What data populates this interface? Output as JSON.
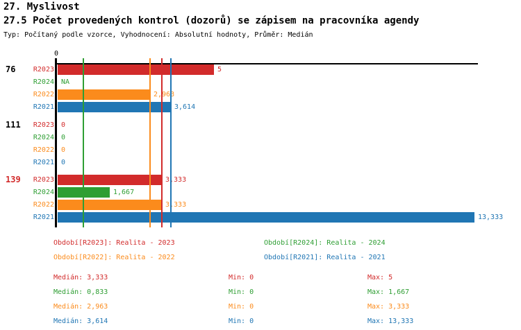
{
  "header": {
    "title": "27. Myslivost",
    "subtitle": "27.5 Počet provedených kontrol (dozorů) se zápisem na pracovníka agendy",
    "meta": "Typ: Počítaný podle vzorce, Vyhodnocení: Absolutní hodnoty, Průměr: Medián"
  },
  "colors": {
    "series": {
      "R2023": "#d22b2b",
      "R2024": "#2e9e33",
      "R2022": "#fb8b1c",
      "R2021": "#2076b4"
    },
    "group_default": "#000000",
    "group_highlight": "#d22b2b",
    "axis": "#000000"
  },
  "chart_data": {
    "type": "bar",
    "orientation": "horizontal",
    "title": "27.5 Počet provedených kontrol (dozorů) se zápisem na pracovníka agendy",
    "x_axis": {
      "origin_label": "0",
      "min": 0,
      "max": 13.45,
      "gridlines": false
    },
    "series_order": [
      "R2023",
      "R2024",
      "R2022",
      "R2021"
    ],
    "groups": [
      {
        "label": "76",
        "highlighted": false,
        "rows": [
          {
            "series": "R2023",
            "value": 5,
            "value_label": "5"
          },
          {
            "series": "R2024",
            "value": null,
            "value_label": "NA"
          },
          {
            "series": "R2022",
            "value": 2.963,
            "value_label": "2,963"
          },
          {
            "series": "R2021",
            "value": 3.614,
            "value_label": "3,614"
          }
        ]
      },
      {
        "label": "111",
        "highlighted": false,
        "rows": [
          {
            "series": "R2023",
            "value": 0,
            "value_label": "0"
          },
          {
            "series": "R2024",
            "value": 0,
            "value_label": "0"
          },
          {
            "series": "R2022",
            "value": 0,
            "value_label": "0"
          },
          {
            "series": "R2021",
            "value": 0,
            "value_label": "0"
          }
        ]
      },
      {
        "label": "139",
        "highlighted": true,
        "rows": [
          {
            "series": "R2023",
            "value": 3.333,
            "value_label": "3,333"
          },
          {
            "series": "R2024",
            "value": 1.667,
            "value_label": "1,667"
          },
          {
            "series": "R2022",
            "value": 3.333,
            "value_label": "3,333"
          },
          {
            "series": "R2021",
            "value": 13.333,
            "value_label": "13,333"
          }
        ]
      }
    ],
    "median_lines": [
      {
        "series": "R2023",
        "value": 3.333
      },
      {
        "series": "R2024",
        "value": 0.833
      },
      {
        "series": "R2022",
        "value": 2.963
      },
      {
        "series": "R2021",
        "value": 3.614
      }
    ]
  },
  "legend": [
    {
      "series": "R2023",
      "text": "Období[R2023]: Realita - 2023"
    },
    {
      "series": "R2024",
      "text": "Období[R2024]: Realita - 2024"
    },
    {
      "series": "R2022",
      "text": "Období[R2022]: Realita - 2022"
    },
    {
      "series": "R2021",
      "text": "Období[R2021]: Realita - 2021"
    }
  ],
  "stats": [
    {
      "series": "R2023",
      "median": "Medián: 3,333",
      "min": "Min: 0",
      "max": "Max: 5"
    },
    {
      "series": "R2024",
      "median": "Medián: 0,833",
      "min": "Min: 0",
      "max": "Max: 1,667"
    },
    {
      "series": "R2022",
      "median": "Medián: 2,963",
      "min": "Min: 0",
      "max": "Max: 3,333"
    },
    {
      "series": "R2021",
      "median": "Medián: 3,614",
      "min": "Min: 0",
      "max": "Max: 13,333"
    }
  ]
}
